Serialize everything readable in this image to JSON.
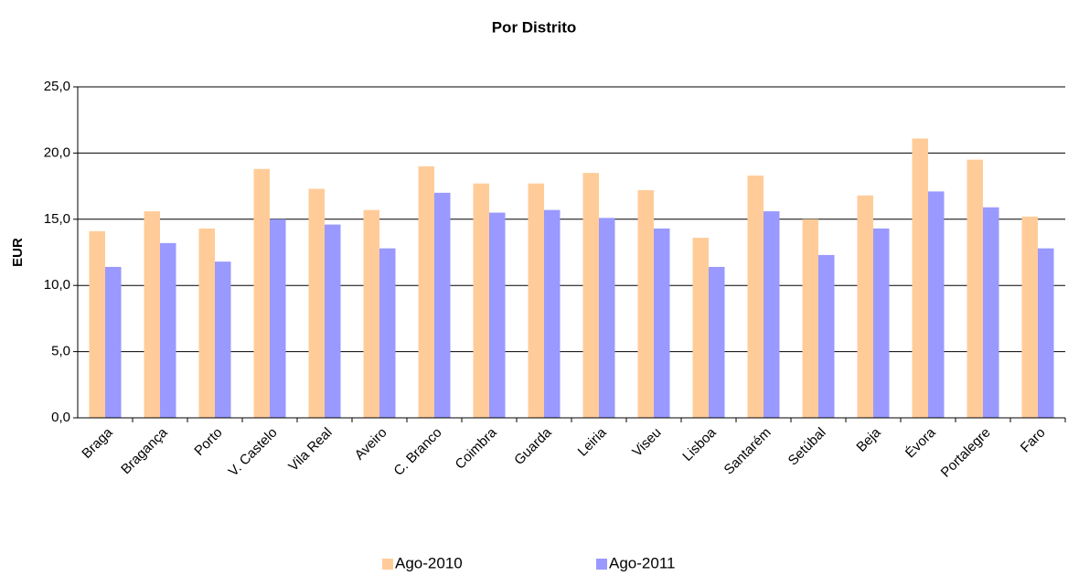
{
  "chart_data": {
    "type": "bar",
    "title": "Por Distrito",
    "y_label": "EUR",
    "categories": [
      "Braga",
      "Bragança",
      "Porto",
      "V. Castelo",
      "Vila Real",
      "Aveiro",
      "C. Branco",
      "Coimbra",
      "Guarda",
      "Leiria",
      "Viseu",
      "Lisboa",
      "Santarém",
      "Setúbal",
      "Beja",
      "Évora",
      "Portalegre",
      "Faro"
    ],
    "series": [
      {
        "name": "Ago-2010",
        "color": "#ffcc99",
        "values": [
          14.1,
          15.6,
          14.3,
          18.8,
          17.3,
          15.7,
          19.0,
          17.7,
          17.7,
          18.5,
          17.2,
          13.6,
          18.3,
          15.0,
          16.8,
          21.1,
          19.5,
          15.2
        ]
      },
      {
        "name": "Ago-2011",
        "color": "#9999ff",
        "values": [
          11.4,
          13.2,
          11.8,
          15.0,
          14.6,
          12.8,
          17.0,
          15.5,
          15.7,
          15.1,
          14.3,
          11.4,
          15.6,
          12.3,
          14.3,
          17.1,
          15.9,
          12.8
        ]
      }
    ],
    "ylim": [
      0,
      25
    ],
    "yticks": [
      {
        "value": 0,
        "label": "0,0"
      },
      {
        "value": 5,
        "label": "5,0"
      },
      {
        "value": 10,
        "label": "10,0"
      },
      {
        "value": 15,
        "label": "15,0"
      },
      {
        "value": 20,
        "label": "20,0"
      },
      {
        "value": 25,
        "label": "25,0"
      }
    ],
    "grid": true,
    "legend": "bottom"
  }
}
